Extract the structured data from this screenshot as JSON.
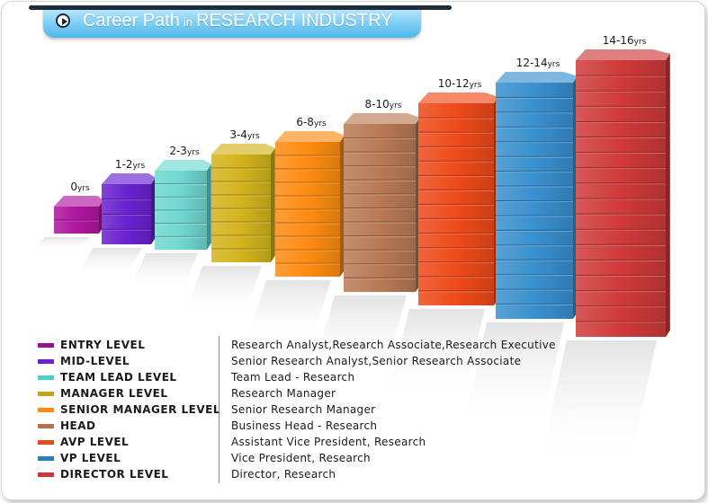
{
  "header": {
    "title_main": "Career Path",
    "title_in": "in",
    "title_industry": "RESEARCH INDUSTRY"
  },
  "chart_data": {
    "type": "bar",
    "title": "Career Path in RESEARCH INDUSTRY",
    "categories": [
      "ENTRY LEVEL",
      "MID-LEVEL",
      "TEAM LEAD LEVEL",
      "MANAGER LEVEL",
      "SENIOR MANAGER LEVEL",
      "HEAD",
      "AVP LEVEL",
      "VP LEVEL",
      "DIRECTOR LEVEL"
    ],
    "bar_labels": [
      {
        "num": "0",
        "unit": "yrs"
      },
      {
        "num": "1-2",
        "unit": "yrs"
      },
      {
        "num": "2-3",
        "unit": "yrs"
      },
      {
        "num": "3-4",
        "unit": "yrs"
      },
      {
        "num": "6-8",
        "unit": "yrs"
      },
      {
        "num": "8-10",
        "unit": "yrs"
      },
      {
        "num": "10-12",
        "unit": "yrs"
      },
      {
        "num": "12-14",
        "unit": "yrs"
      },
      {
        "num": "14-16",
        "unit": "yrs"
      }
    ],
    "block_counts": [
      2,
      4,
      6,
      8,
      10,
      12,
      14,
      16,
      18
    ],
    "colors": [
      "#b0169f",
      "#6a22d0",
      "#6fd8d0",
      "#d4b41c",
      "#ff8c12",
      "#b97a55",
      "#ef4a1a",
      "#3a90cf",
      "#cf3a3a"
    ],
    "legend": [
      {
        "label": "ENTRY LEVEL",
        "desc": "Research Analyst,Research Associate,Research Executive",
        "color": "#990f8c"
      },
      {
        "label": "MID-LEVEL",
        "desc": "Senior Research Analyst,Senior Research Associate",
        "color": "#6a22d0"
      },
      {
        "label": "TEAM LEAD LEVEL",
        "desc": "Team Lead - Research",
        "color": "#4fd0c7"
      },
      {
        "label": "MANAGER LEVEL",
        "desc": "Research Manager",
        "color": "#c4a41c"
      },
      {
        "label": "SENIOR MANAGER LEVEL",
        "desc": "Senior Research Manager",
        "color": "#ff8c12"
      },
      {
        "label": "HEAD",
        "desc": "Business Head - Research",
        "color": "#b5704d"
      },
      {
        "label": "AVP LEVEL",
        "desc": "Assistant Vice President, Research",
        "color": "#e84a1e"
      },
      {
        "label": "VP LEVEL",
        "desc": "Vice President, Research",
        "color": "#2f7db8"
      },
      {
        "label": "DIRECTOR LEVEL",
        "desc": "Director, Research",
        "color": "#c83a3a"
      }
    ]
  }
}
